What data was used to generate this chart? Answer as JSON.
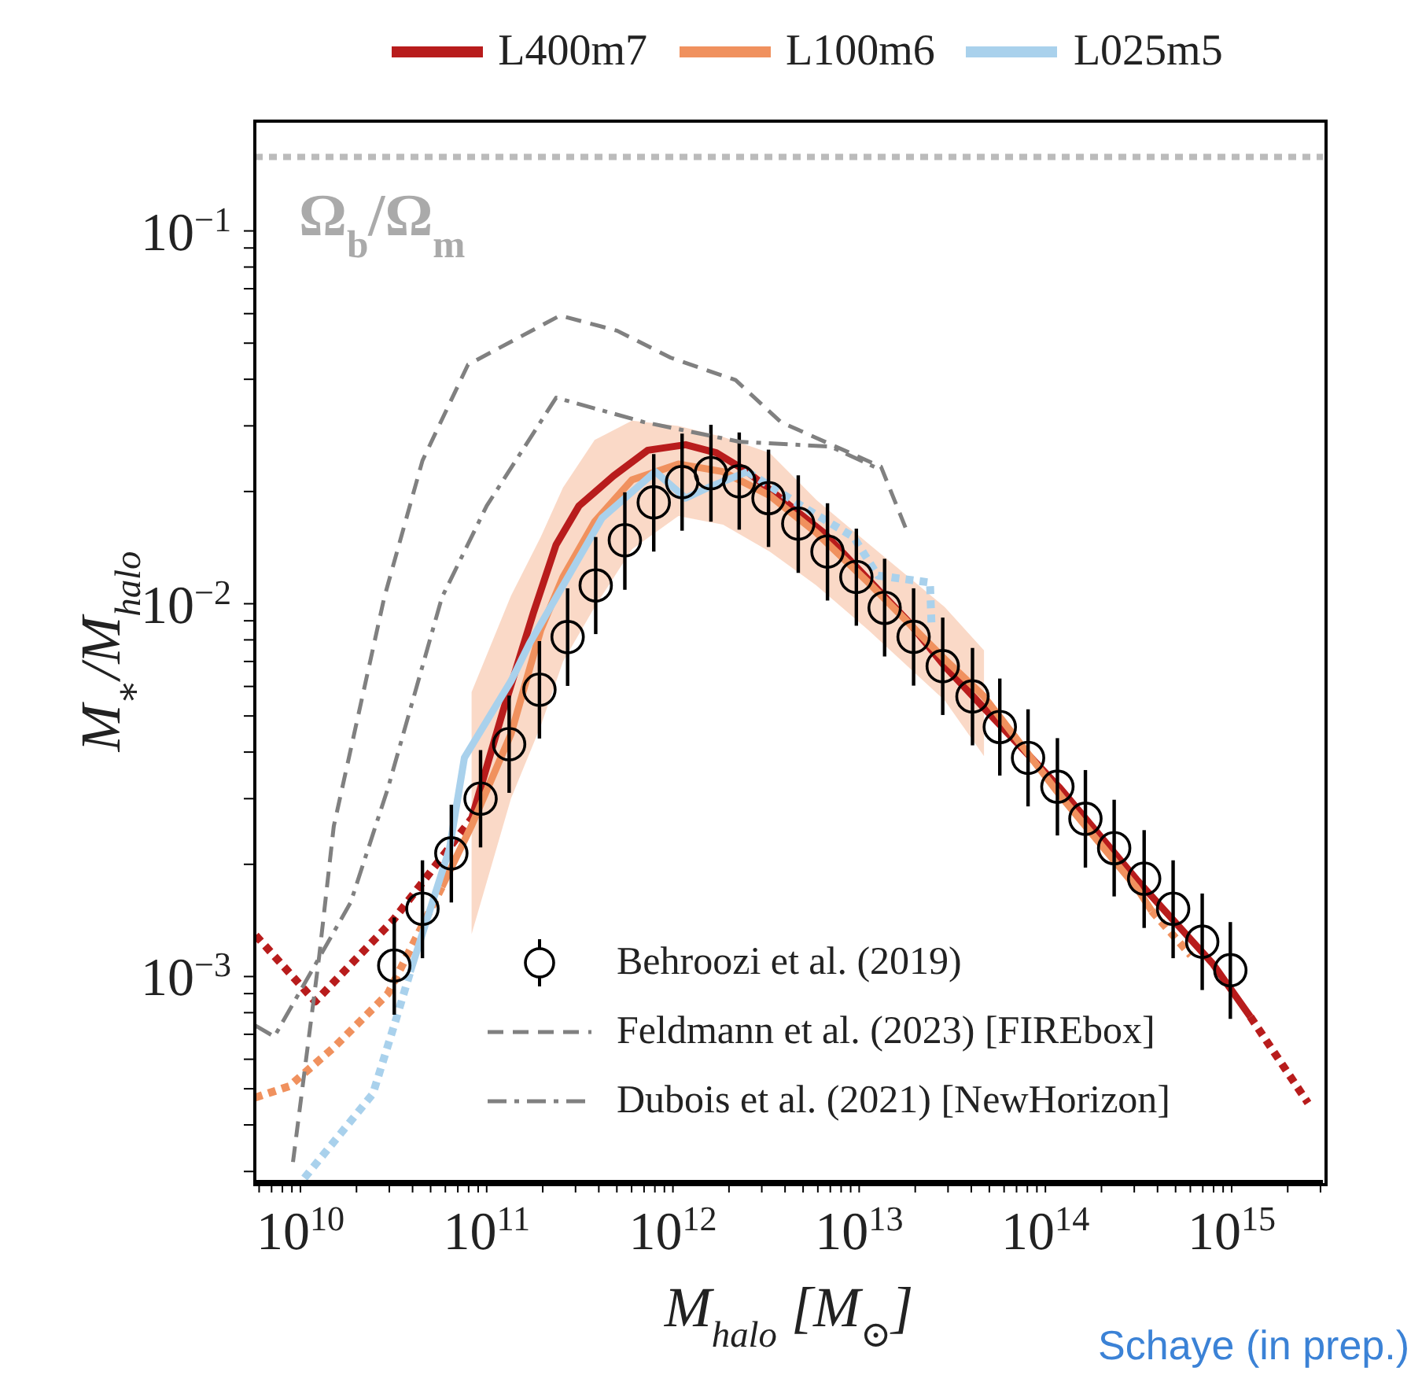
{
  "chart_data": {
    "type": "line",
    "xlabel": "M$_{halo}$ [M$_{⊙}$]",
    "ylabel": "M$_{∗}$/M$_{halo}$",
    "log": "xy",
    "xlim": [
      5690000000.0,
      3090000000000000.0
    ],
    "ylim": [
      0.000282,
      0.197
    ],
    "xticks": [
      {
        "value": 6000000000.0,
        "label": null
      },
      {
        "value": 7000000000.0,
        "label": null
      },
      {
        "value": 8000000000.0,
        "label": null
      },
      {
        "value": 9000000000.0,
        "label": null
      },
      {
        "value": 10000000000.0,
        "label": "10$^{10}$"
      },
      {
        "value": 20000000000.0,
        "label": null
      },
      {
        "value": 30000000000.0,
        "label": null
      },
      {
        "value": 40000000000.0,
        "label": null
      },
      {
        "value": 50000000000.0,
        "label": null
      },
      {
        "value": 60000000000.0,
        "label": null
      },
      {
        "value": 70000000000.0,
        "label": null
      },
      {
        "value": 80000000000.0,
        "label": null
      },
      {
        "value": 90000000000.0,
        "label": null
      },
      {
        "value": 100000000000.0,
        "label": "10$^{11}$"
      },
      {
        "value": 200000000000.0,
        "label": null
      },
      {
        "value": 300000000000.0,
        "label": null
      },
      {
        "value": 400000000000.0,
        "label": null
      },
      {
        "value": 500000000000.0,
        "label": null
      },
      {
        "value": 600000000000.0,
        "label": null
      },
      {
        "value": 700000000000.0,
        "label": null
      },
      {
        "value": 800000000000.0,
        "label": null
      },
      {
        "value": 900000000000.0,
        "label": null
      },
      {
        "value": 1000000000000.0,
        "label": "10$^{12}$"
      },
      {
        "value": 2000000000000.0,
        "label": null
      },
      {
        "value": 3000000000000.0,
        "label": null
      },
      {
        "value": 4000000000000.0,
        "label": null
      },
      {
        "value": 5000000000000.0,
        "label": null
      },
      {
        "value": 6000000000000.0,
        "label": null
      },
      {
        "value": 7000000000000.0,
        "label": null
      },
      {
        "value": 8000000000000.0,
        "label": null
      },
      {
        "value": 9000000000000.0,
        "label": null
      },
      {
        "value": 10000000000000.0,
        "label": "10$^{13}$"
      },
      {
        "value": 20000000000000.0,
        "label": null
      },
      {
        "value": 30000000000000.0,
        "label": null
      },
      {
        "value": 40000000000000.0,
        "label": null
      },
      {
        "value": 50000000000000.0,
        "label": null
      },
      {
        "value": 60000000000000.0,
        "label": null
      },
      {
        "value": 70000000000000.0,
        "label": null
      },
      {
        "value": 80000000000000.0,
        "label": null
      },
      {
        "value": 90000000000000.0,
        "label": null
      },
      {
        "value": 100000000000000.0,
        "label": "10$^{14}$"
      },
      {
        "value": 200000000000000.0,
        "label": null
      },
      {
        "value": 300000000000000.0,
        "label": null
      },
      {
        "value": 400000000000000.0,
        "label": null
      },
      {
        "value": 500000000000000.0,
        "label": null
      },
      {
        "value": 600000000000000.0,
        "label": null
      },
      {
        "value": 700000000000000.0,
        "label": null
      },
      {
        "value": 800000000000000.0,
        "label": null
      },
      {
        "value": 900000000000000.0,
        "label": null
      },
      {
        "value": 1000000000000000.0,
        "label": "10$^{15}$"
      },
      {
        "value": 2000000000000000.0,
        "label": null
      },
      {
        "value": 3000000000000000.0,
        "label": null
      }
    ],
    "yticks": [
      {
        "value": 0.0003,
        "label": null
      },
      {
        "value": 0.0004,
        "label": null
      },
      {
        "value": 0.0005,
        "label": null
      },
      {
        "value": 0.0006,
        "label": null
      },
      {
        "value": 0.0007,
        "label": null
      },
      {
        "value": 0.0008,
        "label": null
      },
      {
        "value": 0.0009,
        "label": null
      },
      {
        "value": 0.001,
        "label": "10$^{−3}$"
      },
      {
        "value": 0.002,
        "label": null
      },
      {
        "value": 0.003,
        "label": null
      },
      {
        "value": 0.004,
        "label": null
      },
      {
        "value": 0.005,
        "label": null
      },
      {
        "value": 0.006,
        "label": null
      },
      {
        "value": 0.007,
        "label": null
      },
      {
        "value": 0.008,
        "label": null
      },
      {
        "value": 0.009,
        "label": null
      },
      {
        "value": 0.01,
        "label": "10$^{−2}$"
      },
      {
        "value": 0.02,
        "label": null
      },
      {
        "value": 0.03,
        "label": null
      },
      {
        "value": 0.04,
        "label": null
      },
      {
        "value": 0.05,
        "label": null
      },
      {
        "value": 0.06,
        "label": null
      },
      {
        "value": 0.07,
        "label": null
      },
      {
        "value": 0.08,
        "label": null
      },
      {
        "value": 0.09,
        "label": null
      },
      {
        "value": 0.1,
        "label": "10$^{−1}$"
      }
    ],
    "legend": "top",
    "grid": false,
    "ref_lines": [
      {
        "axis": "y",
        "value": 0.158,
        "label": "Ω$_{b}$/Ω$_{m}$",
        "color": "#bbbbbb",
        "line_style": "dotted"
      }
    ],
    "annotations": [
      "Schaye (in prep.)"
    ],
    "series": [
      {
        "name": "L400m7",
        "color": "#b81c1c",
        "x": [
          83000000000.0,
          122000000000.0,
          178000000000.0,
          236000000000.0,
          313000000000.0,
          479000000000.0,
          733000000000.0,
          1170000000000.0,
          1710000000000.0,
          2510000000000.0,
          3630000000000.0,
          6460000000000.0,
          10200000000000.0,
          18200000000000.0,
          28800000000000.0,
          51300000000000.0,
          120000000000000.0,
          309000000000000.0,
          794000000000000.0,
          1260000000000000.0
        ],
        "values": [
          0.00265,
          0.00513,
          0.00944,
          0.0144,
          0.0183,
          0.022,
          0.0258,
          0.0267,
          0.0254,
          0.0226,
          0.0195,
          0.0155,
          0.0122,
          0.009,
          0.0068,
          0.005,
          0.0032,
          0.00182,
          0.00108,
          0.00078
        ]
      },
      {
        "color": "#b81c1c",
        "line_style": "dotted",
        "x": [
          5750000000.0,
          12000000000.0,
          31600000000.0,
          83000000000.0
        ],
        "values": [
          0.00129,
          0.000857,
          0.00142,
          0.00265
        ]
      },
      {
        "color": "#b81c1c",
        "line_style": "dotted",
        "x": [
          1260000000000000.0,
          2570000000000000.0
        ],
        "values": [
          0.00078,
          0.000458
        ]
      },
      {
        "name": "L100m6",
        "color": "#f0915e",
        "x": [
          57500000000.0,
          83000000000.0,
          135000000000.0,
          195000000000.0,
          257000000000.0,
          380000000000.0,
          603000000000.0,
          1070000000000.0,
          1860000000000.0,
          3310000000000.0,
          5890000000000.0,
          11200000000000.0,
          28800000000000.0,
          46800000000000.0,
          120000000000000.0,
          309000000000000.0,
          372000000000000.0
        ],
        "values": [
          0.00174,
          0.00254,
          0.00447,
          0.0085,
          0.0118,
          0.0166,
          0.0215,
          0.0237,
          0.0226,
          0.0195,
          0.0155,
          0.0114,
          0.0071,
          0.00564,
          0.00306,
          0.00173,
          0.0015
        ],
        "lower": [
          null,
          0.0013,
          0.003,
          0.0047,
          0.007,
          0.0098,
          0.014,
          0.0172,
          0.0163,
          0.0138,
          0.0112,
          0.0085,
          0.0055,
          0.0039,
          null,
          null,
          null
        ],
        "upper": [
          null,
          0.0058,
          0.0105,
          0.0151,
          0.0205,
          0.0275,
          0.031,
          0.03,
          0.028,
          0.0254,
          0.019,
          0.0145,
          0.0098,
          0.0075,
          null,
          null,
          null
        ]
      },
      {
        "color": "#f0915e",
        "line_style": "dotted",
        "x": [
          5690000000.0,
          8710000000.0,
          15100000000.0,
          29500000000.0,
          57500000000.0
        ],
        "values": [
          0.000473,
          0.000508,
          0.000645,
          0.0009,
          0.00174
        ]
      },
      {
        "color": "#f0915e",
        "line_style": "dotted",
        "x": [
          372000000000000.0,
          603000000000000.0
        ],
        "values": [
          0.0015,
          0.00114
        ]
      },
      {
        "name": "L025m5",
        "color": "#a9d1ec",
        "x": [
          38900000000.0,
          63100000000.0,
          75900000000.0,
          135000000000.0,
          170000000000.0,
          417000000000.0,
          804000000000.0,
          1170000000000.0,
          1550000000000.0,
          2510000000000.0
        ],
        "values": [
          0.00103,
          0.0022,
          0.00386,
          0.0062,
          0.00783,
          0.017,
          0.0226,
          0.0192,
          0.0205,
          0.0226
        ]
      },
      {
        "color": "#a9d1ec",
        "line_style": "dotted",
        "x": [
          10500000000.0,
          24500000000.0,
          32400000000.0,
          38900000000.0
        ],
        "values": [
          0.000288,
          0.000485,
          0.00076,
          0.00103
        ]
      },
      {
        "color": "#a9d1ec",
        "line_style": "dotted",
        "x": [
          2510000000000.0,
          4900000000000.0,
          9330000000000.0,
          12600000000000.0,
          24000000000000.0,
          24500000000000.0
        ],
        "values": [
          0.0226,
          0.0183,
          0.0151,
          0.0119,
          0.0114,
          0.0086
        ]
      },
      {
        "name": "Behroozi et al. (2019)",
        "type": "scatter",
        "color": "#000000",
        "marker": "circle",
        "x": [
          31900000000.0,
          45200000000.0,
          64600000000.0,
          92700000000.0,
          132000000000.0,
          192000000000.0,
          272000000000.0,
          385000000000.0,
          552000000000.0,
          789000000000.0,
          1120000000000.0,
          1600000000000.0,
          2270000000000.0,
          3260000000000.0,
          4710000000000.0,
          6760000000000.0,
          9660000000000.0,
          13700000000000.0,
          19600000000000.0,
          28100000000000.0,
          40600000000000.0,
          56900000000000.0,
          80700000000000.0,
          116000000000000.0,
          164000000000000.0,
          234000000000000.0,
          339000000000000.0,
          485000000000000.0,
          695000000000000.0,
          984000000000000.0
        ],
        "values": [
          0.00107,
          0.00152,
          0.00214,
          0.003,
          0.0042,
          0.00588,
          0.00814,
          0.0112,
          0.0148,
          0.0187,
          0.0212,
          0.0224,
          0.0213,
          0.0192,
          0.0164,
          0.0138,
          0.0118,
          0.00975,
          0.00815,
          0.0068,
          0.00564,
          0.00467,
          0.00386,
          0.00323,
          0.00265,
          0.00221,
          0.00183,
          0.00152,
          0.00124,
          0.00104
        ],
        "errors": [
          [
            0.00079,
            0.00144
          ],
          [
            0.00112,
            0.00205
          ],
          [
            0.00158,
            0.00289
          ],
          [
            0.00222,
            0.00405
          ],
          [
            0.00311,
            0.00567
          ],
          [
            0.00435,
            0.00794
          ],
          [
            0.00602,
            0.011
          ],
          [
            0.00829,
            0.0151
          ],
          [
            0.0109,
            0.0199
          ],
          [
            0.0138,
            0.0252
          ],
          [
            0.0157,
            0.0286
          ],
          [
            0.0166,
            0.0302
          ],
          [
            0.0158,
            0.0288
          ],
          [
            0.0142,
            0.0259
          ],
          [
            0.0121,
            0.0221
          ],
          [
            0.0102,
            0.0186
          ],
          [
            0.00873,
            0.0159
          ],
          [
            0.00722,
            0.0132
          ],
          [
            0.00603,
            0.011
          ],
          [
            0.00503,
            0.00918
          ],
          [
            0.00417,
            0.00761
          ],
          [
            0.00346,
            0.0063
          ],
          [
            0.00286,
            0.00521
          ],
          [
            0.00239,
            0.00436
          ],
          [
            0.00196,
            0.00358
          ],
          [
            0.00164,
            0.00298
          ],
          [
            0.00135,
            0.00247
          ],
          [
            0.00112,
            0.00205
          ],
          [
            0.00092,
            0.00167
          ],
          [
            0.00077,
            0.0014
          ]
        ]
      },
      {
        "name": "Feldmann et al. (2023) [FIREbox]",
        "color": "#808080",
        "line_style": "dashed",
        "x": [
          9120000000.0,
          12600000000.0,
          15100000000.0,
          28200000000.0,
          45200000000.0,
          79400000000.0,
          248000000000.0,
          501000000000.0,
          973000000000.0,
          2170000000000.0,
          3800000000000.0,
          13100000000000.0,
          18200000000000.0
        ],
        "values": [
          0.000318,
          0.00113,
          0.00253,
          0.0104,
          0.0242,
          0.0438,
          0.0593,
          0.054,
          0.0457,
          0.0398,
          0.0307,
          0.0233,
          0.0155
        ]
      },
      {
        "name": "Dubois et al. (2021) [NewHorizon]",
        "color": "#808080",
        "line_style": "dashdot",
        "x": [
          5690000000.0,
          7240000000.0,
          18600000000.0,
          29500000000.0,
          57500000000.0,
          100000000000.0,
          236000000000.0,
          700000000000.0,
          2270000000000.0,
          7010000000000.0,
          12500000000000.0
        ],
        "values": [
          0.00074,
          0.00069,
          0.00158,
          0.0032,
          0.0104,
          0.0183,
          0.0357,
          0.0307,
          0.0272,
          0.0264,
          0.0231
        ]
      }
    ]
  }
}
